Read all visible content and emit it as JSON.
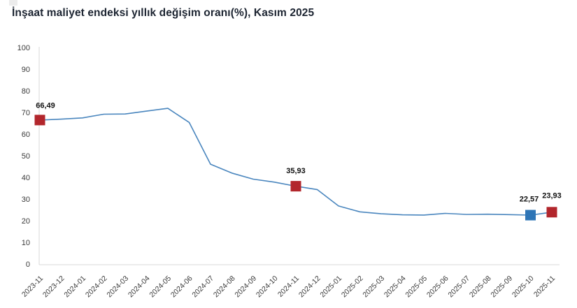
{
  "title": "İnşaat maliyet endeksi yıllık değişim oranı(%), Kasım 2025",
  "chart_data": {
    "type": "line",
    "title": "İnşaat maliyet endeksi yıllık değişim oranı(%), Kasım 2025",
    "x": [
      "2023-11",
      "2023-12",
      "2024-01",
      "2024-02",
      "2024-03",
      "2024-04",
      "2024-05",
      "2024-06",
      "2024-07",
      "2024-08",
      "2024-09",
      "2024-10",
      "2024-11",
      "2024-12",
      "2025-01",
      "2025-02",
      "2025-03",
      "2025-04",
      "2025-05",
      "2025-06",
      "2025-07",
      "2025-08",
      "2025-09",
      "2025-10",
      "2025-11"
    ],
    "series": [
      {
        "name": "Yıllık değişim oranı (%)",
        "values": [
          66.49,
          66.9,
          67.5,
          69.2,
          69.3,
          70.6,
          71.9,
          65.4,
          46.1,
          42.0,
          39.2,
          37.8,
          35.93,
          34.4,
          26.8,
          24.1,
          23.2,
          22.7,
          22.6,
          23.4,
          22.9,
          23.0,
          22.8,
          22.57,
          23.93
        ]
      }
    ],
    "highlighted_points": [
      {
        "x": "2023-11",
        "value": 66.49,
        "label": "66,49",
        "color": "#b2262c"
      },
      {
        "x": "2024-11",
        "value": 35.93,
        "label": "35,93",
        "color": "#b2262c"
      },
      {
        "x": "2025-10",
        "value": 22.57,
        "label": "22,57",
        "color": "#2e75b6"
      },
      {
        "x": "2025-11",
        "value": 23.93,
        "label": "23,93",
        "color": "#b2262c"
      }
    ],
    "ylim": [
      0,
      100
    ],
    "ytick_step": 10,
    "grid": false,
    "legend": false,
    "line_color": "#4a86be",
    "axis_color": "#d9d9d9",
    "tick_label_color": "#3a3a3a",
    "value_label_color": "#111111"
  }
}
